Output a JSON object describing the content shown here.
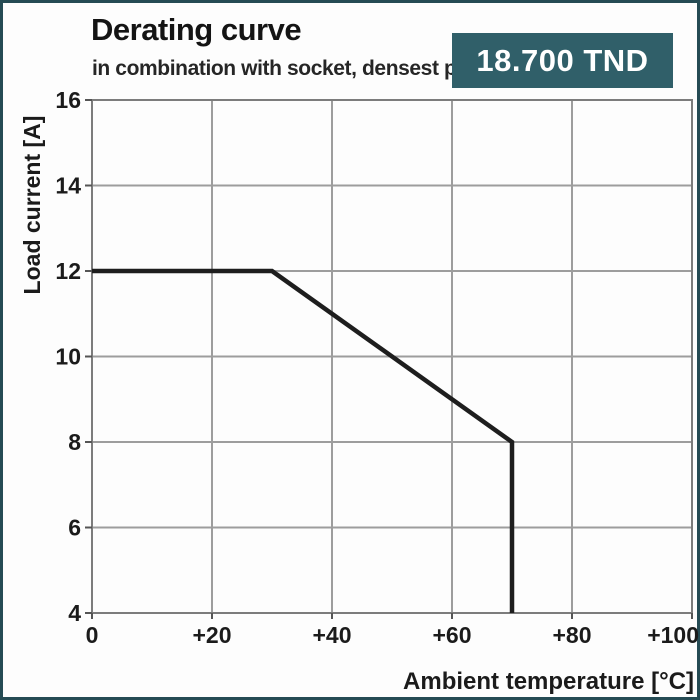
{
  "page": {
    "frame_border_color": "#254b54",
    "background_color": "#fdfdfd"
  },
  "header": {
    "title": "Derating curve",
    "subtitle": "in combination with socket, densest packing"
  },
  "price_badge": {
    "label": "18.700 TND",
    "background": "#305f69",
    "text_color": "#ffffff"
  },
  "chart_data": {
    "type": "line",
    "title": "Derating curve",
    "subtitle": "in combination with socket, densest packing",
    "xlabel": "Ambient temperature [°C]",
    "ylabel": "Load current [A]",
    "xlim": [
      0,
      100
    ],
    "ylim": [
      4,
      16
    ],
    "x_ticks": [
      0,
      20,
      40,
      60,
      80,
      100
    ],
    "x_tick_labels": [
      "0",
      "+20",
      "+40",
      "+60",
      "+80",
      "+100"
    ],
    "y_ticks": [
      16,
      14,
      12,
      10,
      8,
      6,
      4
    ],
    "y_tick_labels": [
      "16",
      "14",
      "12",
      "10",
      "8",
      "6",
      "4"
    ],
    "grid": true,
    "grid_color": "#9d9d9d",
    "plot_border_color": "#7c7c7c",
    "legend": "none",
    "series": [
      {
        "name": "derating-curve",
        "color": "#1e1e1e",
        "line_width": 4.5,
        "points": [
          [
            0,
            12
          ],
          [
            30,
            12
          ],
          [
            70,
            8
          ],
          [
            70,
            4
          ]
        ]
      }
    ]
  }
}
